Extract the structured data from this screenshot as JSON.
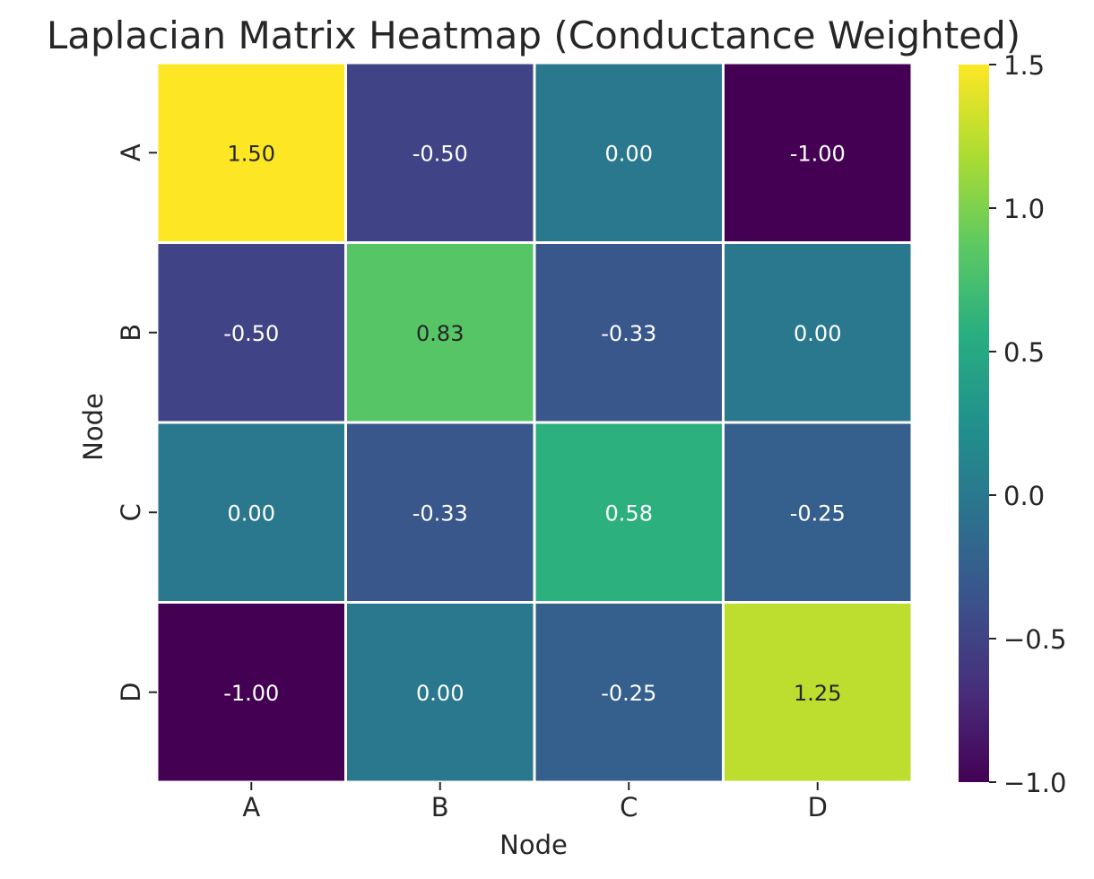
{
  "chart_data": {
    "type": "heatmap",
    "title": "Laplacian Matrix Heatmap (Conductance Weighted)",
    "xlabel": "Node",
    "ylabel": "Node",
    "x_categories": [
      "A",
      "B",
      "C",
      "D"
    ],
    "y_categories": [
      "A",
      "B",
      "C",
      "D"
    ],
    "values": [
      [
        1.5,
        -0.5,
        0.0,
        -1.0
      ],
      [
        -0.5,
        0.83,
        -0.33,
        0.0
      ],
      [
        0.0,
        -0.33,
        0.58,
        -0.25
      ],
      [
        -1.0,
        0.0,
        -0.25,
        1.25
      ]
    ],
    "value_format": "0.00",
    "colormap": "viridis",
    "vmin": -1.0,
    "vmax": 1.5,
    "colorbar_ticks": [
      "1.5",
      "1.0",
      "0.5",
      "0.0",
      "−0.5",
      "−1.0"
    ],
    "colorbar_tick_values": [
      1.5,
      1.0,
      0.5,
      0.0,
      -0.5,
      -1.0
    ],
    "grid": false,
    "cell_border_color": "#ffffff",
    "annotation_dark_color": "#262626",
    "annotation_light_color": "#ffffff"
  }
}
